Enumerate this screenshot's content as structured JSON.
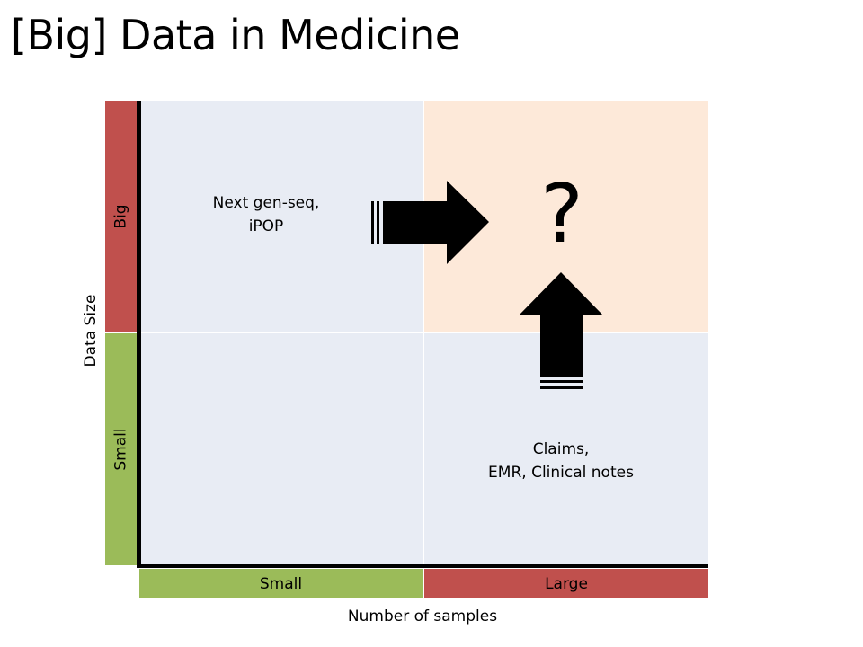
{
  "title": "[Big] Data in Medicine",
  "y_axis": {
    "label": "Data Size",
    "categories": [
      "Big",
      "Small"
    ]
  },
  "x_axis": {
    "label": "Number of samples",
    "categories": [
      "Small",
      "Large"
    ]
  },
  "quadrants": {
    "top_left": {
      "lines": [
        "Next gen-seq,",
        "iPOP"
      ]
    },
    "top_right": {
      "symbol": "?"
    },
    "bottom_right": {
      "lines": [
        "Claims,",
        "EMR, Clinical notes"
      ]
    }
  },
  "colors": {
    "red": "#c0504d",
    "green": "#9bbb59",
    "blue_quadrant": "#e8ecf4",
    "peach_quadrant": "#fde9d9"
  }
}
